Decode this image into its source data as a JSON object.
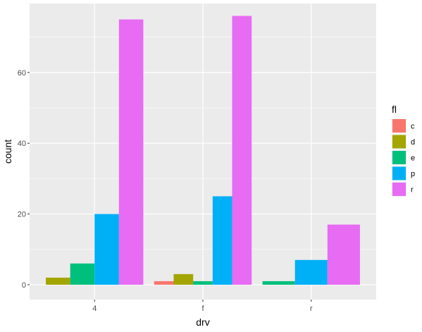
{
  "chart_data": {
    "type": "bar",
    "layout": "dodge",
    "xlabel": "drv",
    "ylabel": "count",
    "categories": [
      "4",
      "f",
      "r"
    ],
    "ylim": [
      -4.2,
      79.5
    ],
    "yticks": [
      0,
      20,
      40,
      60
    ],
    "grid": true,
    "legend": {
      "title": "fl",
      "position": "right"
    },
    "series": [
      {
        "name": "c",
        "color": "#F8766D",
        "values": [
          null,
          1,
          null
        ]
      },
      {
        "name": "d",
        "color": "#A3A500",
        "values": [
          2,
          3,
          null
        ]
      },
      {
        "name": "e",
        "color": "#00BF7D",
        "values": [
          6,
          1,
          1
        ]
      },
      {
        "name": "p",
        "color": "#00B0F6",
        "values": [
          20,
          25,
          7
        ]
      },
      {
        "name": "r",
        "color": "#E76BF3",
        "values": [
          75,
          76,
          17
        ]
      }
    ]
  }
}
